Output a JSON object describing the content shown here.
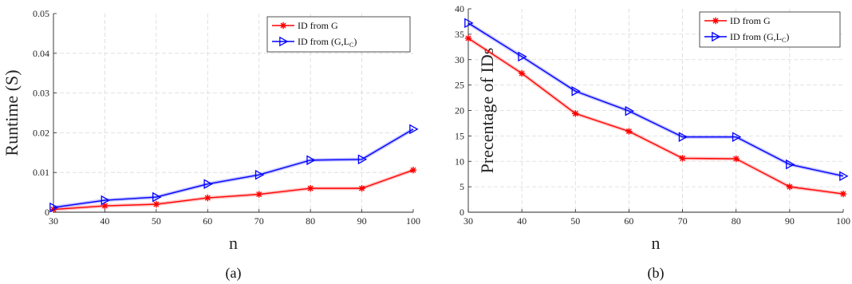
{
  "chart_data": [
    {
      "type": "line",
      "caption": "(a)",
      "xlabel": "n",
      "ylabel": "Runtime (S)",
      "xlim": [
        30,
        100
      ],
      "ylim": [
        0,
        0.05
      ],
      "xticks": [
        30,
        40,
        50,
        60,
        70,
        80,
        90,
        100
      ],
      "xtick_labels": [
        "30",
        "40",
        "50",
        "60",
        "70",
        "80",
        "90",
        "100"
      ],
      "yticks": [
        0,
        0.01,
        0.02,
        0.03,
        0.04,
        0.05
      ],
      "ytick_labels": [
        "0",
        "0.01",
        "0.02",
        "0.03",
        "0.04",
        "0.05"
      ],
      "grid": true,
      "legend_position": "top-right",
      "x": [
        30,
        40,
        50,
        60,
        70,
        80,
        90,
        100
      ],
      "series": [
        {
          "name": "ID from G",
          "name_sub": "",
          "name_suffix": "",
          "color": "#ff0000",
          "marker": "asterisk",
          "values": [
            0.0007,
            0.0016,
            0.002,
            0.0036,
            0.0045,
            0.006,
            0.006,
            0.0106
          ]
        },
        {
          "name": "ID from (G,L",
          "name_sub": "C",
          "name_suffix": ")",
          "color": "#0000ff",
          "marker": "triangle-right",
          "values": [
            0.0012,
            0.003,
            0.0038,
            0.0071,
            0.0094,
            0.0131,
            0.0133,
            0.0209
          ]
        }
      ]
    },
    {
      "type": "line",
      "caption": "(b)",
      "xlabel": "n",
      "ylabel": "Precentage of IDs",
      "xlim": [
        30,
        100
      ],
      "ylim": [
        0,
        40
      ],
      "xticks": [
        30,
        40,
        50,
        60,
        70,
        80,
        90,
        100
      ],
      "xtick_labels": [
        "30",
        "40",
        "50",
        "60",
        "70",
        "80",
        "90",
        "100"
      ],
      "yticks": [
        0,
        5,
        10,
        15,
        20,
        25,
        30,
        35,
        40
      ],
      "ytick_labels": [
        "0",
        "5",
        "10",
        "15",
        "20",
        "25",
        "30",
        "35",
        "40"
      ],
      "grid": true,
      "legend_position": "top-right",
      "x": [
        30,
        40,
        50,
        60,
        70,
        80,
        90,
        100
      ],
      "series": [
        {
          "name": "ID from G",
          "name_sub": "",
          "name_suffix": "",
          "color": "#ff0000",
          "marker": "asterisk",
          "values": [
            34.2,
            27.3,
            19.4,
            15.9,
            10.6,
            10.5,
            5.0,
            3.6
          ]
        },
        {
          "name": "ID from (G,L",
          "name_sub": "C",
          "name_suffix": ")",
          "color": "#0000ff",
          "marker": "triangle-right",
          "values": [
            37.2,
            30.6,
            23.8,
            19.9,
            14.8,
            14.8,
            9.4,
            7.1
          ]
        }
      ]
    }
  ]
}
